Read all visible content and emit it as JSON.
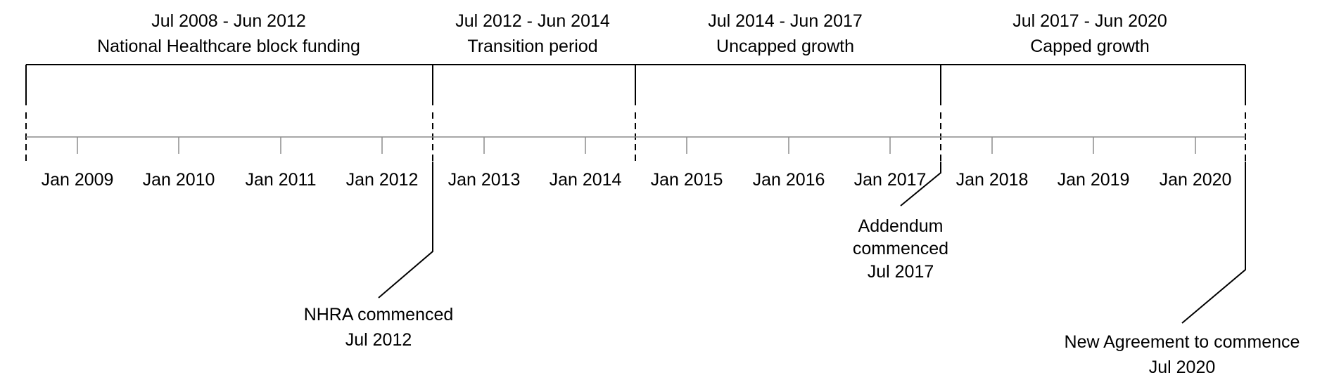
{
  "periods": [
    {
      "range": "Jul 2008 - Jun 2012",
      "name": "National Healthcare block funding"
    },
    {
      "range": "Jul 2012 - Jun 2014",
      "name": "Transition period"
    },
    {
      "range": "Jul 2014 - Jun 2017",
      "name": "Uncapped growth"
    },
    {
      "range": "Jul 2017 - Jun 2020",
      "name": "Capped growth"
    }
  ],
  "ticks": [
    "Jan 2009",
    "Jan 2010",
    "Jan 2011",
    "Jan 2012",
    "Jan 2013",
    "Jan 2014",
    "Jan 2015",
    "Jan 2016",
    "Jan 2017",
    "Jan 2018",
    "Jan 2019",
    "Jan 2020"
  ],
  "events": [
    {
      "label": "NHRA commenced",
      "date": "Jul 2012"
    },
    {
      "label_lines": [
        "Addendum",
        "commenced"
      ],
      "date": "Jul 2017"
    },
    {
      "label": "New Agreement to commence",
      "date": "Jul 2020"
    }
  ]
}
